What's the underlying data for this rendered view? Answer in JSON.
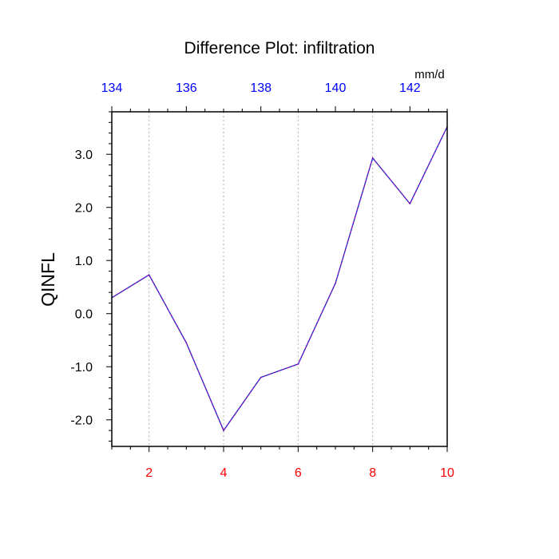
{
  "chart_data": {
    "type": "line",
    "title": "Difference Plot: infiltration",
    "units": "mm/d",
    "ylabel": "QINFL",
    "xlim": [
      1,
      10
    ],
    "ylim": [
      -2.5,
      3.8
    ],
    "x": [
      1,
      2,
      3,
      4,
      5,
      6,
      7,
      8,
      9,
      10
    ],
    "series": [
      {
        "values": [
          0.3,
          0.73,
          -0.55,
          -2.2,
          -1.2,
          -0.95,
          0.57,
          2.93,
          2.07,
          3.52
        ]
      }
    ],
    "bottom_ticks": [
      2,
      4,
      6,
      8,
      10
    ],
    "bottom_tick_labels": [
      "2",
      "4",
      "6",
      "8",
      "10"
    ],
    "top_tick_positions": [
      1,
      3,
      5,
      7,
      9
    ],
    "top_tick_labels": [
      "134",
      "136",
      "138",
      "140",
      "142"
    ],
    "y_ticks": [
      -2,
      -1,
      0,
      1,
      2,
      3
    ],
    "y_tick_labels": [
      "-2.0",
      "-1.0",
      "0.0",
      "1.0",
      "2.0",
      "3.0"
    ],
    "grid_x": [
      2,
      4,
      6,
      8
    ],
    "colors": {
      "line": "#7a00b0",
      "line_dash": "#1f3fd0",
      "bottom_ticks": "#ff0000",
      "top_ticks": "#0000ff",
      "grid": "#b0b0b0",
      "text": "#000000"
    }
  }
}
